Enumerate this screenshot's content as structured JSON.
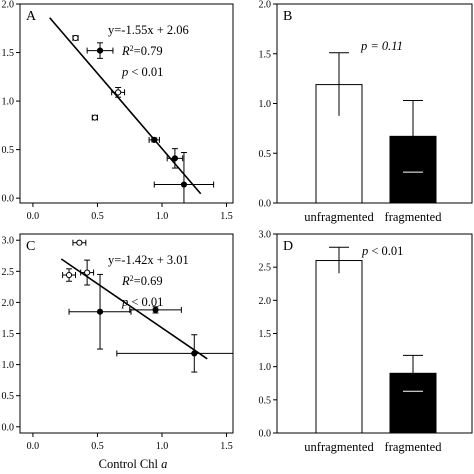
{
  "xaxis_label": {
    "main": "Control Chl",
    "italic": "a"
  },
  "chart_data": [
    {
      "panel": "A",
      "type": "scatter",
      "xlim": [
        -0.1,
        1.55
      ],
      "ylim": [
        -0.05,
        2.0
      ],
      "xticks": [
        0.0,
        0.5,
        1.0,
        1.5
      ],
      "yticks": [
        0.0,
        0.5,
        1.0,
        1.5,
        2.0
      ],
      "xtick_labels": [
        "0.0",
        "0.5",
        "1.0",
        "1.5"
      ],
      "ytick_labels": [
        "0.0",
        "0.5",
        "1.0",
        "1.5",
        "2.0"
      ],
      "points": [
        {
          "x": 0.33,
          "y": 1.65,
          "filled": false,
          "xerr": 0.02,
          "yerr": 0.0
        },
        {
          "x": 0.52,
          "y": 1.52,
          "filled": true,
          "xerr": 0.1,
          "yerr": 0.08
        },
        {
          "x": 0.66,
          "y": 1.09,
          "filled": false,
          "xerr": 0.05,
          "yerr": 0.05
        },
        {
          "x": 0.48,
          "y": 0.83,
          "filled": false,
          "xerr": 0.02,
          "yerr": 0.0
        },
        {
          "x": 0.94,
          "y": 0.6,
          "filled": true,
          "xerr": 0.04,
          "yerr": 0.02
        },
        {
          "x": 1.1,
          "y": 0.41,
          "filled": true,
          "xerr": 0.06,
          "yerr": 0.1
        },
        {
          "x": 1.17,
          "y": 0.14,
          "filled": true,
          "xerr": 0.23,
          "yerr": 0.33
        }
      ],
      "fit": {
        "slope": -1.55,
        "intercept": 2.06,
        "x_range": [
          0.13,
          1.3
        ]
      },
      "equation": "y=-1.55x + 2.06",
      "r2_prefix": "R",
      "r2_value": "=0.79",
      "p_label": "p",
      "p_value": "< 0.01"
    },
    {
      "panel": "B",
      "type": "bar",
      "categories": [
        "unfragmented",
        "fragmented"
      ],
      "values": [
        1.19,
        0.67
      ],
      "errors": [
        0.32,
        0.36
      ],
      "colors": [
        "#ffffff",
        "#000000"
      ],
      "ylim": [
        0,
        2.0
      ],
      "yticks": [
        0.0,
        0.5,
        1.0,
        1.5,
        2.0
      ],
      "ytick_labels": [
        "0.0",
        "0.5",
        "1.0",
        "1.5",
        "2.0"
      ],
      "annotation": "p = 0.11"
    },
    {
      "panel": "C",
      "type": "scatter",
      "xlim": [
        -0.1,
        1.55
      ],
      "ylim": [
        -0.1,
        3.1
      ],
      "xticks": [
        0.0,
        0.5,
        1.0,
        1.5
      ],
      "yticks": [
        0.0,
        0.5,
        1.0,
        1.5,
        2.0,
        2.5,
        3.0
      ],
      "xtick_labels": [
        "0.0",
        "0.5",
        "1.0",
        "1.5"
      ],
      "ytick_labels": [
        "0.0",
        "0.5",
        "1.0",
        "1.5",
        "2.0",
        "2.5",
        "3.0"
      ],
      "points": [
        {
          "x": 0.36,
          "y": 2.96,
          "filled": false,
          "xerr": 0.05,
          "yerr": 0.0
        },
        {
          "x": 0.28,
          "y": 2.44,
          "filled": false,
          "xerr": 0.05,
          "yerr": 0.1
        },
        {
          "x": 0.42,
          "y": 2.48,
          "filled": false,
          "xerr": 0.05,
          "yerr": 0.2
        },
        {
          "x": 0.52,
          "y": 1.85,
          "filled": true,
          "xerr": 0.24,
          "yerr": 0.6
        },
        {
          "x": 0.95,
          "y": 1.88,
          "filled": true,
          "xerr": 0.2,
          "yerr": 0.05
        },
        {
          "x": 1.25,
          "y": 1.18,
          "filled": true,
          "xerr": 0.6,
          "yerr": 0.3
        }
      ],
      "fit": {
        "slope": -1.42,
        "intercept": 3.01,
        "x_range": [
          0.22,
          1.35
        ]
      },
      "equation": "y=-1.42x + 3.01",
      "r2_prefix": "R",
      "r2_value": "=0.69",
      "p_label": "p",
      "p_value": "< 0.01"
    },
    {
      "panel": "D",
      "type": "bar",
      "categories": [
        "unfragmented",
        "fragmented"
      ],
      "values": [
        2.6,
        0.9
      ],
      "errors": [
        0.2,
        0.27
      ],
      "colors": [
        "#ffffff",
        "#000000"
      ],
      "ylim": [
        0,
        3.0
      ],
      "yticks": [
        0.0,
        0.5,
        1.0,
        1.5,
        2.0,
        2.5,
        3.0
      ],
      "ytick_labels": [
        "0.0",
        "0.5",
        "1.0",
        "1.5",
        "2.0",
        "2.5",
        "3.0"
      ],
      "annotation_label": "p",
      "annotation_value": "< 0.01"
    }
  ]
}
